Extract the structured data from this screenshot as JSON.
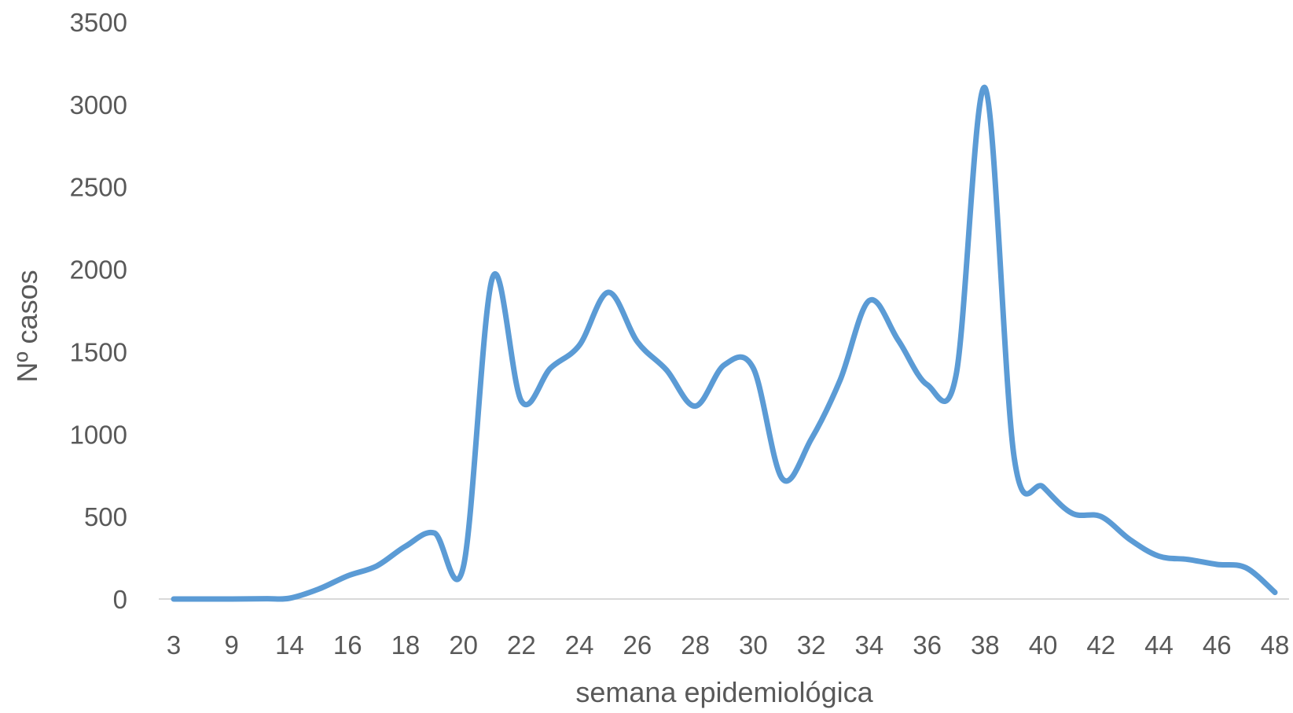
{
  "chart_data": {
    "type": "line",
    "xlabel": "semana epidemiológica",
    "ylabel": "Nº casos",
    "ylim": [
      0,
      3500
    ],
    "yticks": [
      0,
      500,
      1000,
      1500,
      2000,
      2500,
      3000,
      3500
    ],
    "y_tick_labels": [
      "0",
      "500",
      "1000",
      "1500",
      "2000",
      "2500",
      "3000",
      "3500"
    ],
    "x_tick_labels": [
      "3",
      "9",
      "14",
      "16",
      "18",
      "20",
      "22",
      "24",
      "26",
      "28",
      "30",
      "32",
      "34",
      "36",
      "38",
      "40",
      "42",
      "44",
      "46",
      "48"
    ],
    "grid": false,
    "legend": "none",
    "line_color": "#5b9bd5",
    "axis_color": "#d9d9d9",
    "text_color": "#595959",
    "x": [
      "3",
      "9",
      "12",
      "14",
      "15",
      "16",
      "17",
      "18",
      "19",
      "20",
      "21",
      "22",
      "23",
      "24",
      "25",
      "26",
      "27",
      "28",
      "29",
      "30",
      "31",
      "32",
      "33",
      "34",
      "35",
      "36",
      "37",
      "38",
      "39",
      "40",
      "41",
      "42",
      "43",
      "44",
      "45",
      "46",
      "47",
      "48"
    ],
    "series": [
      {
        "values": [
          0,
          0,
          2,
          5,
          60,
          140,
          200,
          320,
          400,
          200,
          1950,
          1200,
          1400,
          1540,
          1860,
          1560,
          1390,
          1170,
          1420,
          1400,
          730,
          970,
          1330,
          1810,
          1570,
          1300,
          1360,
          3100,
          860,
          680,
          520,
          500,
          360,
          260,
          240,
          210,
          190,
          40
        ]
      }
    ]
  }
}
